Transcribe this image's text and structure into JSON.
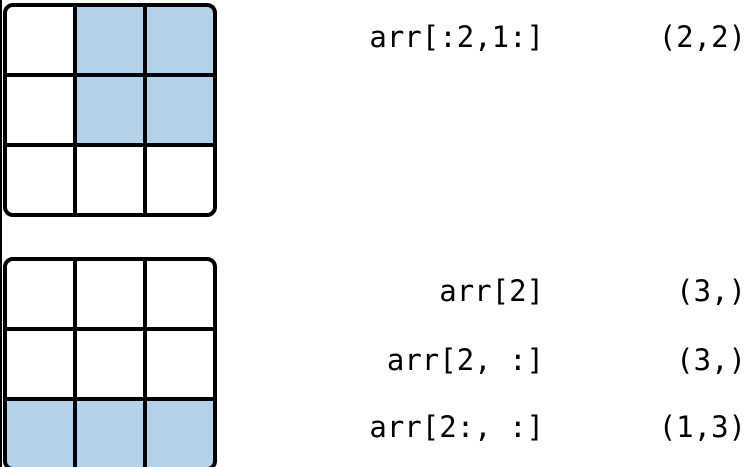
{
  "colors": {
    "highlight": "#b3d3ed",
    "cell": "#ffffff",
    "stroke": "#000000"
  },
  "diagrams": [
    {
      "rows": 3,
      "cols": 3,
      "highlighted": [
        [
          0,
          1
        ],
        [
          0,
          2
        ],
        [
          1,
          1
        ],
        [
          1,
          2
        ]
      ],
      "expressions": [
        {
          "expr": "arr[:2,1:]",
          "shape": "(2,2)"
        }
      ]
    },
    {
      "rows": 3,
      "cols": 3,
      "highlighted": [
        [
          2,
          0
        ],
        [
          2,
          1
        ],
        [
          2,
          2
        ]
      ],
      "expressions": [
        {
          "expr": "arr[2]",
          "shape": "(3,)"
        },
        {
          "expr": "arr[2, :]",
          "shape": "(3,)"
        },
        {
          "expr": "arr[2:, :]",
          "shape": "(1,3)"
        }
      ]
    }
  ]
}
